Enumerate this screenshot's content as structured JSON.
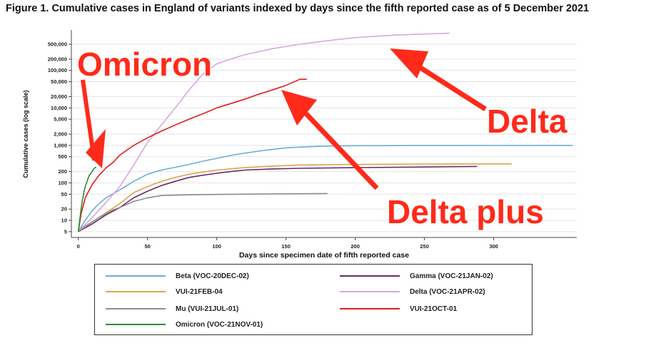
{
  "figure_title": "Figure 1. Cumulative cases in England of variants indexed by days since the fifth reported case as of 5 December 2021",
  "annotations": [
    "Omicron",
    "Delta",
    "Delta plus"
  ],
  "chart_data": {
    "type": "line",
    "title": "Figure 1. Cumulative cases in England of variants indexed by days since the fifth reported case as of 5 December 2021",
    "xlabel": "Days since specimen date of fifth reported case",
    "ylabel": "Cumulative cases (log scale)",
    "yscale": "log",
    "xlim": [
      -5,
      360
    ],
    "ylim": [
      3.5,
      1200000
    ],
    "x_ticks": [
      0,
      50,
      100,
      150,
      200,
      250,
      300
    ],
    "y_ticks": [
      5,
      10,
      20,
      50,
      100,
      200,
      500,
      1000,
      2000,
      5000,
      10000,
      20000,
      50000,
      100000,
      200000,
      500000
    ],
    "y_tick_labels": [
      "5",
      "10",
      "20",
      "50",
      "100",
      "200",
      "500",
      "1,000",
      "2,000",
      "5,000",
      "10,000",
      "20,000",
      "50,000",
      "100,000",
      "200,000",
      "500,000"
    ],
    "grid": true,
    "legend_position": "bottom",
    "series": [
      {
        "name": "Beta (VOC-20DEC-02)",
        "color": "#6baed6",
        "x": [
          0,
          5,
          10,
          15,
          20,
          30,
          40,
          50,
          60,
          70,
          80,
          90,
          100,
          110,
          120,
          130,
          140,
          150,
          160,
          175,
          200,
          250,
          300,
          357
        ],
        "y": [
          5,
          10,
          18,
          28,
          40,
          65,
          110,
          170,
          220,
          260,
          310,
          380,
          450,
          540,
          620,
          700,
          780,
          860,
          900,
          950,
          980,
          990,
          995,
          1000
        ]
      },
      {
        "name": "Gamma (VOC-21JAN-02)",
        "color": "#6a2a6a",
        "x": [
          0,
          10,
          20,
          30,
          40,
          50,
          60,
          70,
          80,
          90,
          100,
          110,
          120,
          140,
          160,
          200,
          250,
          288
        ],
        "y": [
          5,
          8,
          14,
          22,
          40,
          60,
          85,
          110,
          140,
          160,
          180,
          200,
          220,
          235,
          245,
          255,
          265,
          275
        ]
      },
      {
        "name": "VUI-21FEB-04",
        "color": "#daa54a",
        "x": [
          0,
          10,
          20,
          30,
          40,
          50,
          60,
          70,
          80,
          90,
          100,
          120,
          140,
          160,
          200,
          250,
          313
        ],
        "y": [
          5,
          9,
          16,
          28,
          55,
          80,
          110,
          140,
          170,
          195,
          220,
          255,
          280,
          300,
          310,
          318,
          322
        ]
      },
      {
        "name": "Delta (VOC-21APR-02)",
        "color": "#d6a8e0",
        "x": [
          0,
          10,
          20,
          30,
          40,
          50,
          60,
          70,
          80,
          90,
          100,
          110,
          120,
          140,
          160,
          180,
          200,
          230,
          260,
          268
        ],
        "y": [
          5,
          12,
          30,
          80,
          300,
          1200,
          3500,
          10000,
          30000,
          80000,
          150000,
          200000,
          260000,
          380000,
          500000,
          620000,
          750000,
          880000,
          960000,
          980000
        ]
      },
      {
        "name": "Mu (VUI-21JUL-01)",
        "color": "#8c8c8c",
        "x": [
          0,
          5,
          10,
          15,
          20,
          25,
          30,
          40,
          50,
          60,
          80,
          100,
          120,
          150,
          180
        ],
        "y": [
          5,
          7,
          9,
          12,
          15,
          19,
          22,
          32,
          40,
          46,
          48,
          49,
          50,
          51,
          52
        ]
      },
      {
        "name": "VUI-21OCT-01",
        "color": "#e41a1c",
        "x": [
          0,
          2,
          5,
          10,
          15,
          20,
          25,
          30,
          40,
          50,
          60,
          70,
          80,
          90,
          100,
          110,
          120,
          130,
          140,
          150,
          160,
          165
        ],
        "y": [
          5,
          15,
          40,
          90,
          160,
          250,
          350,
          550,
          1000,
          1600,
          2400,
          3500,
          5000,
          7000,
          10000,
          13000,
          17000,
          23000,
          30000,
          40000,
          58000,
          58000
        ]
      },
      {
        "name": "Omicron (VOC-21NOV-01)",
        "color": "#2e8b3a",
        "x": [
          0,
          1,
          2,
          3,
          4,
          5,
          6,
          7,
          8,
          9,
          10,
          11,
          12,
          13
        ],
        "y": [
          5,
          10,
          20,
          35,
          55,
          80,
          100,
          130,
          160,
          180,
          200,
          230,
          255,
          260
        ]
      }
    ]
  }
}
